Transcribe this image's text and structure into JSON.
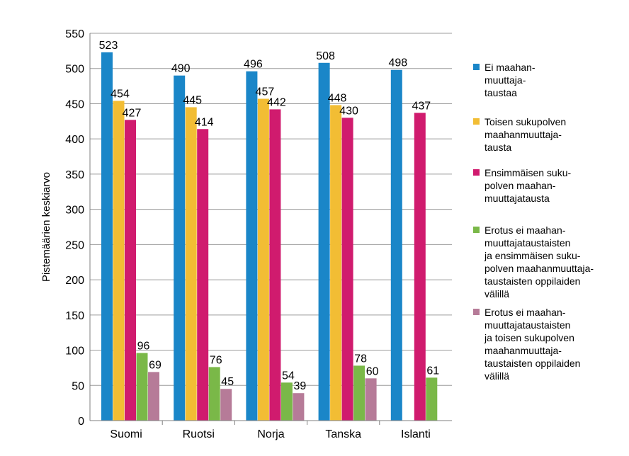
{
  "chart_data": {
    "type": "bar",
    "title": "",
    "xlabel": "",
    "ylabel": "Pistemäärien keskiarvo",
    "ylim": [
      0,
      550
    ],
    "yticks": [
      0,
      50,
      100,
      150,
      200,
      250,
      300,
      350,
      400,
      450,
      500,
      550
    ],
    "grid": true,
    "legend_position": "right",
    "categories": [
      "Suomi",
      "Ruotsi",
      "Norja",
      "Tanska",
      "Islanti"
    ],
    "series": [
      {
        "name": "Ei maahan-\nmuuttaja-\ntaustaa",
        "color": "#1a86c8",
        "values": [
          523,
          490,
          496,
          508,
          498
        ]
      },
      {
        "name": "Toisen sukupolven\nmaahanmuuttaja-\ntausta",
        "color": "#f2bd34",
        "values": [
          454,
          445,
          457,
          448,
          null
        ]
      },
      {
        "name": "Ensimmäisen suku-\npolven maahan-\nmuuttajatausta",
        "color": "#d01b6e",
        "values": [
          427,
          414,
          442,
          430,
          437
        ]
      },
      {
        "name": "Erotus ei maahan-\nmuuttajataustaisten\nja ensimmäisen suku-\npolven maahanmuuttaja-\ntaustaisten oppilaiden\nvälillä",
        "color": "#7ab848",
        "values": [
          96,
          76,
          54,
          78,
          61
        ]
      },
      {
        "name": "Erotus ei maahan-\nmuuttajataustaisten\nja toisen sukupolven\nmaahanmuuttaja-\ntaustaisten oppilaiden\nvälillä",
        "color": "#b67b98",
        "values": [
          69,
          45,
          39,
          60,
          null
        ]
      }
    ]
  }
}
